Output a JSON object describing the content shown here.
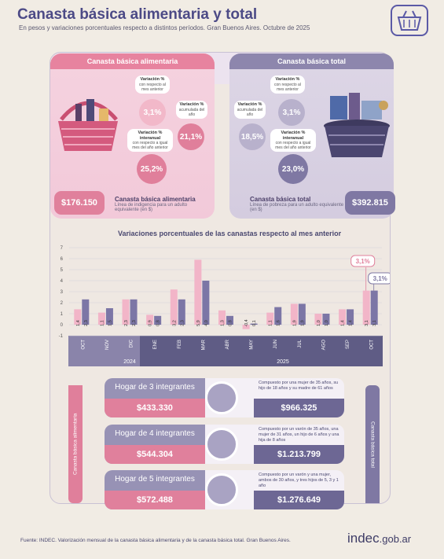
{
  "header": {
    "title": "Canasta básica alimentaria y total",
    "subtitle": "En pesos y variaciones porcentuales respecto a distintos períodos. Gran Buenos Aires. Octubre de 2025"
  },
  "cba": {
    "title": "Canasta básica alimentaria",
    "var_month_label": "Variación %",
    "var_month_desc": "con respecto al mes anterior",
    "var_month_value": "3,1%",
    "var_acc_label": "Variación %",
    "var_acc_desc": "acumulada del año",
    "var_acc_value": "21,1%",
    "var_yoy_label": "Variación % interanual",
    "var_yoy_desc": "con respecto a igual mes del año anterior",
    "var_yoy_value": "25,2%",
    "amount": "$176.150",
    "line_title": "Canasta básica alimentaria",
    "line_desc": "Línea de indigencia para un adulto equivalente (en $)"
  },
  "cbt": {
    "title": "Canasta básica total",
    "var_month_label": "Variación %",
    "var_month_desc": "con respecto al mes anterior",
    "var_month_value": "3,1%",
    "var_acc_label": "Variación %",
    "var_acc_desc": "acumulada del año",
    "var_acc_value": "18,5%",
    "var_yoy_label": "Variación % interanual",
    "var_yoy_desc": "con respecto a igual mes del año anterior",
    "var_yoy_value": "23,0%",
    "amount": "$392.815",
    "line_title": "Canasta básica total",
    "line_desc": "Línea de pobreza para un adulto equivalente (en $)"
  },
  "chart_data": {
    "type": "bar",
    "title": "Variaciones porcentuales de las canastas respecto al mes anterior",
    "categories": [
      "OCT",
      "NOV",
      "DIC",
      "ENE",
      "FEB",
      "MAR",
      "ABR",
      "MAY",
      "JUN",
      "JUL",
      "AGO",
      "SEP",
      "OCT"
    ],
    "years": [
      "2024",
      "2025"
    ],
    "yticks": [
      "7",
      "6",
      "5",
      "4",
      "3",
      "2",
      "1",
      "0",
      "-1"
    ],
    "ylim": [
      -1,
      7
    ],
    "series": [
      {
        "values": [
          1.4,
          1.1,
          2.3,
          0.9,
          3.2,
          5.9,
          1.3,
          -0.4,
          1.1,
          1.9,
          1.0,
          1.4,
          3.1
        ],
        "labels": [
          "1,4",
          "1,1",
          "2,3",
          "0,9",
          "3,2",
          "5,9",
          "1,3",
          "-0,4",
          "1,1",
          "1,9",
          "1,0",
          "1,4",
          "3,1"
        ],
        "color": "#f2b5c8"
      },
      {
        "values": [
          2.3,
          1.5,
          2.3,
          0.8,
          2.3,
          4.0,
          0.8,
          0.1,
          1.6,
          1.9,
          1.0,
          1.4,
          3.1
        ],
        "labels": [
          "2,3",
          "1,5",
          "2,3",
          "0,8",
          "2,3",
          "4,0",
          "0,8",
          "0,1",
          "1,6",
          "1,9",
          "1,0",
          "1,4",
          "3,1"
        ],
        "color": "#7c76a6"
      }
    ],
    "callouts": [
      "3,1%",
      "3,1%"
    ]
  },
  "sidebar": {
    "left": "Canasta básica alimentaria",
    "right": "Canasta básica total"
  },
  "households": [
    {
      "label": "Hogar de 3 integrantes",
      "cba": "$433.330",
      "desc": "Compuesto por una mujer de 35 años, su hijo de 18 años y su madre de 61 años",
      "cbt": "$966.325"
    },
    {
      "label": "Hogar de 4 integrantes",
      "cba": "$544.304",
      "desc": "Compuesto por un varón de 35 años, una mujer de 31 años, un hijo de 6 años y una hija de 8 años",
      "cbt": "$1.213.799"
    },
    {
      "label": "Hogar de 5 integrantes",
      "cba": "$572.488",
      "desc": "Compuesto por un varón y una mujer, ambos de 30 años, y tres hijos de 5, 3 y 1 año",
      "cbt": "$1.276.649"
    }
  ],
  "footer": {
    "source": "Fuente: INDEC. Valorización mensual de la canasta básica alimentaria y de la canasta básica total. Gran Buenos Aires.",
    "brand": "indec",
    "brand_suffix": ".gob.ar"
  },
  "colors": {
    "pink": "#e0809c",
    "purple": "#7f78a3",
    "dark_title": "#4c4a86"
  },
  "icons": {
    "logo": "basket-icon"
  }
}
